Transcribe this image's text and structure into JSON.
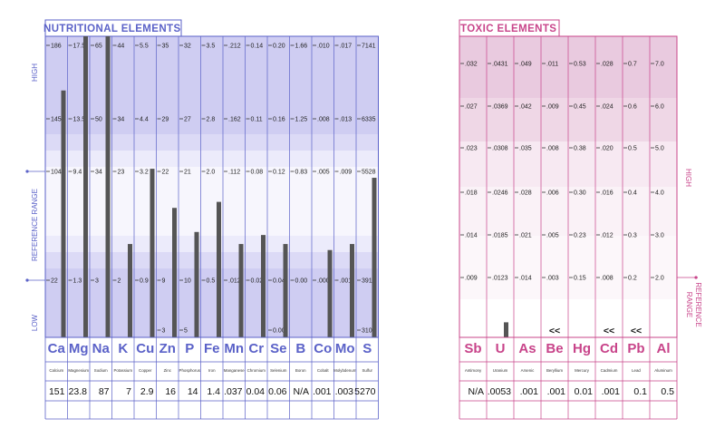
{
  "nutritional": {
    "title": "NUTRITIONAL  ELEMENTS",
    "side_labels": {
      "high": "HIGH",
      "reference_range": "REFERENCE  RANGE",
      "low": "LOW"
    },
    "colors": {
      "accent": "#5b62c8",
      "band_light": "#ecebfb",
      "band_mid": "#dcdaf6",
      "band_dark": "#cfcdf2",
      "bar": "#555555"
    }
  },
  "toxic": {
    "title": "TOXIC  ELEMENTS",
    "side_labels": {
      "high": "HIGH",
      "reference_range": "REFERENCE\nRANGE"
    },
    "colors": {
      "accent": "#c8448a",
      "band_light": "#f7e9f2",
      "band_mid": "#efd7e6",
      "band_dark": "#e9cadf",
      "bar": "#555555"
    }
  },
  "chart_data": [
    {
      "type": "bar",
      "title": "NUTRITIONAL  ELEMENTS",
      "bar_scale": "0 = bottom (LOW), 1 = top (HIGH)",
      "elements": [
        {
          "sym": "Ca",
          "name": "Calcium",
          "value": "151",
          "ticks": [
            "186",
            "145",
            "104",
            "",
            "22"
          ],
          "bar": 0.82
        },
        {
          "sym": "Mg",
          "name": "Magnesium",
          "value": "23.8",
          "ticks": [
            "17.5",
            "13.5",
            "9.4",
            "",
            "1.3"
          ],
          "bar": 1.0
        },
        {
          "sym": "Na",
          "name": "Sodium",
          "value": "87",
          "ticks": [
            "65",
            "50",
            "34",
            "",
            "3"
          ],
          "bar": 1.0
        },
        {
          "sym": "K",
          "name": "Potassium",
          "value": "7",
          "ticks": [
            "44",
            "34",
            "23",
            "",
            "2"
          ],
          "bar": 0.31
        },
        {
          "sym": "Cu",
          "name": "Copper",
          "value": "2.9",
          "ticks": [
            "5.5",
            "4.4",
            "3.2",
            "",
            "0.9"
          ],
          "bar": 0.56
        },
        {
          "sym": "Zn",
          "name": "Zinc",
          "value": "16",
          "ticks": [
            "35",
            "29",
            "22",
            "",
            "9",
            "3"
          ],
          "bar": 0.43
        },
        {
          "sym": "P",
          "name": "Phosphorus",
          "value": "14",
          "ticks": [
            "32",
            "27",
            "21",
            "",
            "10",
            "5"
          ],
          "bar": 0.35
        },
        {
          "sym": "Fe",
          "name": "Iron",
          "value": "1.4",
          "ticks": [
            "3.5",
            "2.8",
            "2.0",
            "",
            "0.5"
          ],
          "bar": 0.45
        },
        {
          "sym": "Mn",
          "name": "Manganese",
          "value": ".037",
          "ticks": [
            ".212",
            ".162",
            ".112",
            "",
            ".012"
          ],
          "bar": 0.31
        },
        {
          "sym": "Cr",
          "name": "Chromium",
          "value": "0.04",
          "ticks": [
            "0.14",
            "0.11",
            "0.08",
            "",
            "0.02"
          ],
          "bar": 0.34
        },
        {
          "sym": "Se",
          "name": "Selenium",
          "value": "0.06",
          "ticks": [
            "0.20",
            "0.16",
            "0.12",
            "",
            "0.04",
            "0.00"
          ],
          "bar": 0.31
        },
        {
          "sym": "B",
          "name": "Boron",
          "value": "N/A",
          "ticks": [
            "1.66",
            "1.25",
            "0.83",
            "",
            "0.00"
          ],
          "bar": 0
        },
        {
          "sym": "Co",
          "name": "Cobalt",
          "value": ".001",
          "ticks": [
            ".010",
            ".008",
            ".005",
            "",
            ".000"
          ],
          "bar": 0.29
        },
        {
          "sym": "Mo",
          "name": "Molybdenum",
          "value": ".003",
          "ticks": [
            ".017",
            ".013",
            ".009",
            "",
            ".001"
          ],
          "bar": 0.31
        },
        {
          "sym": "S",
          "name": "Sulfur",
          "value": "5270",
          "ticks": [
            "7141",
            "6335",
            "5528",
            "",
            "3915",
            "3109"
          ],
          "bar": 0.53
        }
      ]
    },
    {
      "type": "bar",
      "title": "TOXIC  ELEMENTS",
      "bar_scale": "0 = bottom, 1 = top (HIGH)",
      "elements": [
        {
          "sym": "Sb",
          "name": "Antimony",
          "value": "N/A",
          "ticks": [
            ".032",
            ".027",
            ".023",
            ".018",
            ".014",
            ".009"
          ],
          "bar": 0,
          "mark": ""
        },
        {
          "sym": "U",
          "name": "Uranium",
          "value": ".0053",
          "ticks": [
            ".0431",
            ".0369",
            ".0308",
            ".0246",
            ".0185",
            ".0123"
          ],
          "bar": 0.05,
          "mark": ""
        },
        {
          "sym": "As",
          "name": "Arsenic",
          "value": ".001",
          "ticks": [
            ".049",
            ".042",
            ".035",
            ".028",
            ".021",
            ".014"
          ],
          "bar": 0,
          "mark": ""
        },
        {
          "sym": "Be",
          "name": "Beryllium",
          "value": ".001",
          "ticks": [
            ".011",
            ".009",
            ".008",
            ".006",
            ".005",
            ".003"
          ],
          "bar": 0,
          "mark": "<<"
        },
        {
          "sym": "Hg",
          "name": "Mercury",
          "value": "0.01",
          "ticks": [
            "0.53",
            "0.45",
            "0.38",
            "0.30",
            "0.23",
            "0.15"
          ],
          "bar": 0,
          "mark": ""
        },
        {
          "sym": "Cd",
          "name": "Cadmium",
          "value": ".001",
          "ticks": [
            ".028",
            ".024",
            ".020",
            ".016",
            ".012",
            ".008"
          ],
          "bar": 0,
          "mark": "<<"
        },
        {
          "sym": "Pb",
          "name": "Lead",
          "value": "0.1",
          "ticks": [
            "0.7",
            "0.6",
            "0.5",
            "0.4",
            "0.3",
            "0.2"
          ],
          "bar": 0,
          "mark": "<<"
        },
        {
          "sym": "Al",
          "name": "Aluminum",
          "value": "0.5",
          "ticks": [
            "7.0",
            "6.0",
            "5.0",
            "4.0",
            "3.0",
            "2.0"
          ],
          "bar": 0,
          "mark": ""
        }
      ]
    }
  ]
}
